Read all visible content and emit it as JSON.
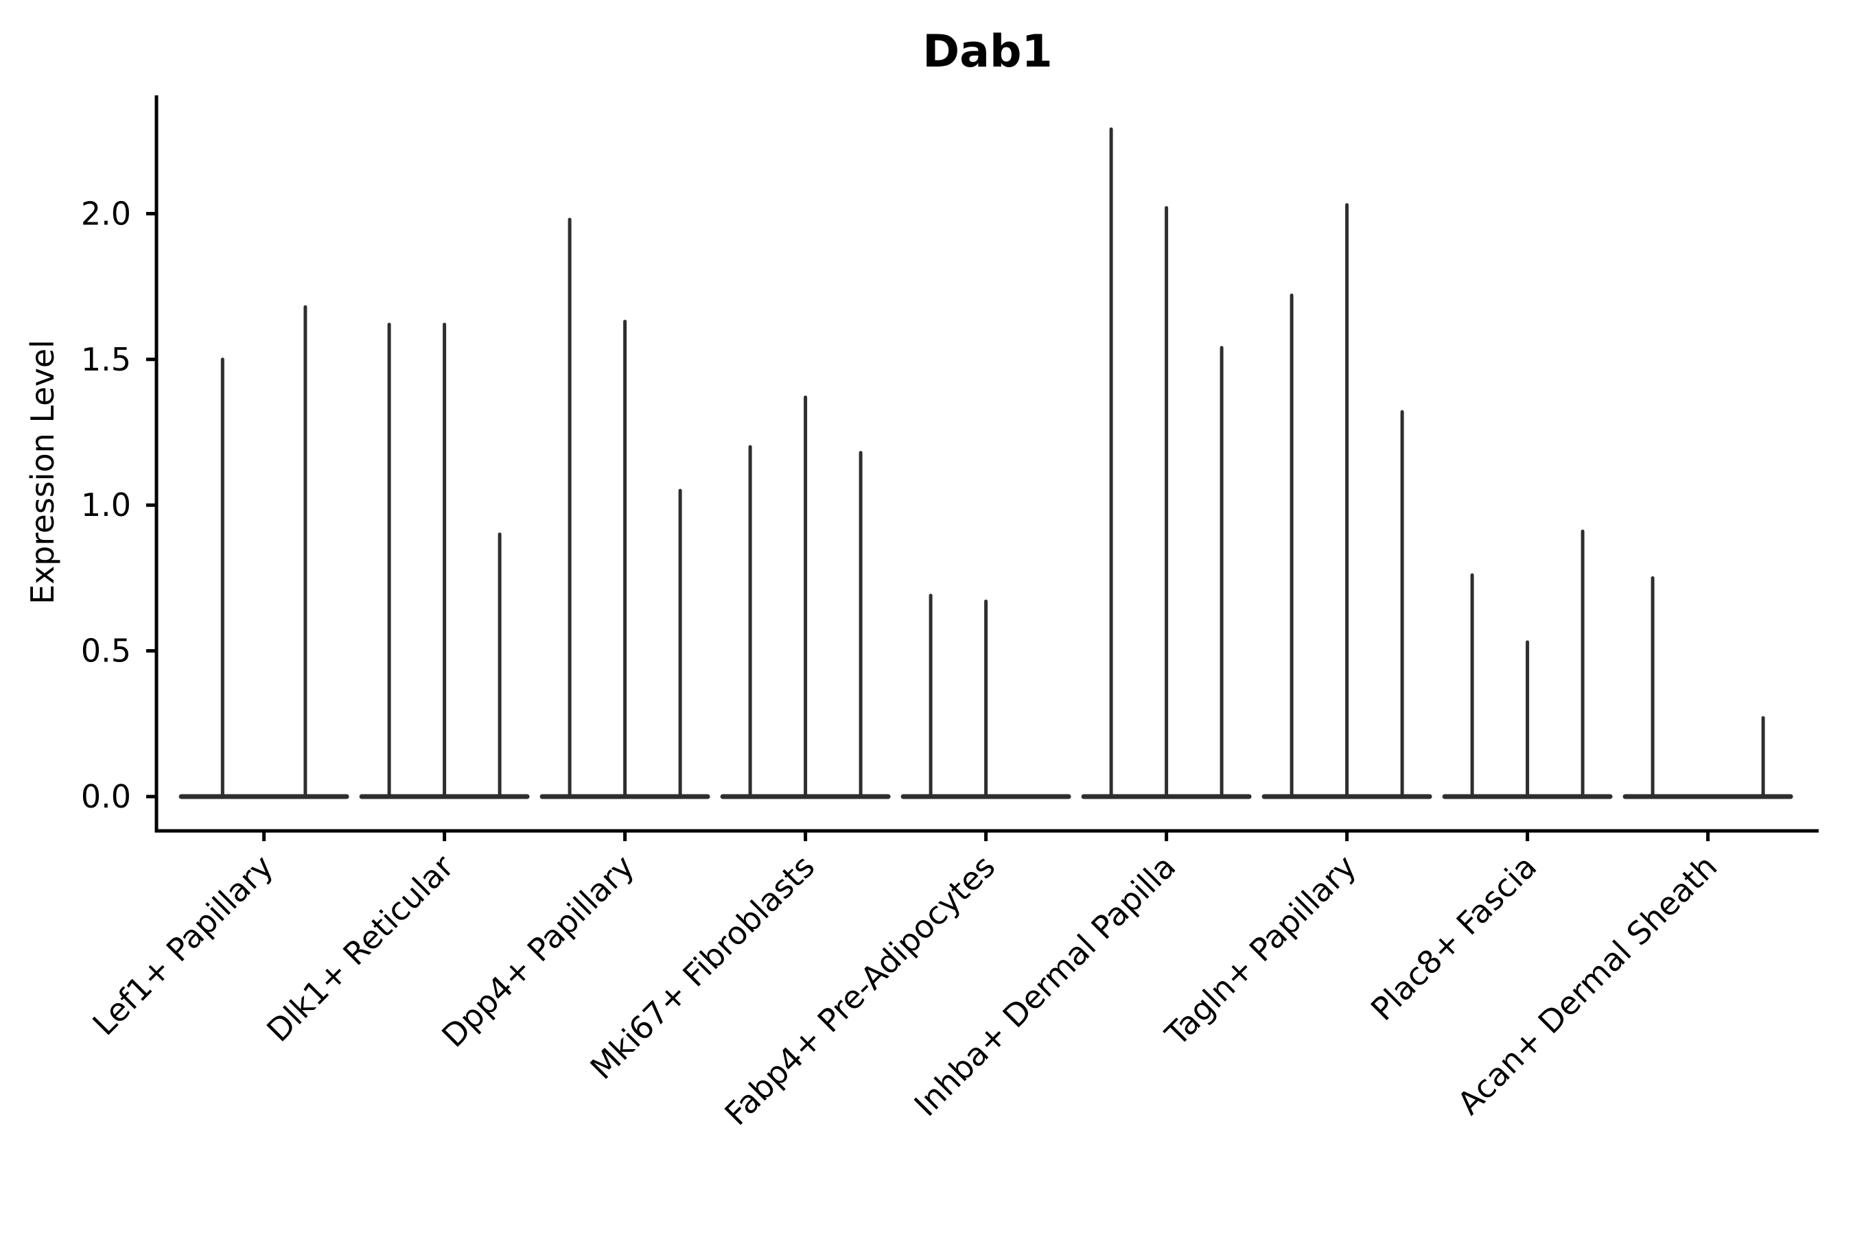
{
  "chart_data": {
    "type": "violin",
    "title": "Dab1",
    "ylabel": "Expression Level",
    "xlabel": "",
    "grid": false,
    "legend_position": "none",
    "x_tick_rotation": 45,
    "yticks": [
      {
        "value": 0.0,
        "label": "0.0"
      },
      {
        "value": 0.5,
        "label": "0.5"
      },
      {
        "value": 1.0,
        "label": "1.0"
      },
      {
        "value": 1.5,
        "label": "1.5"
      },
      {
        "value": 2.0,
        "label": "2.0"
      }
    ],
    "ylim": [
      -0.115,
      2.405
    ],
    "categories": [
      "Lef1+ Papillary",
      "Dlk1+ Reticular",
      "Dpp4+ Papillary",
      "Mki67+ Fibroblasts",
      "Fabp4+ Pre-Adipocytes",
      "Inhba+ Dermal Papilla",
      "Tagln+ Papillary",
      "Plac8+ Fascia",
      "Acan+ Dermal Sheath"
    ],
    "groups": [
      {
        "category": "Lef1+ Papillary",
        "violin_maxima": [
          1.5,
          1.68
        ]
      },
      {
        "category": "Dlk1+ Reticular",
        "violin_maxima": [
          1.62,
          1.62,
          0.9
        ]
      },
      {
        "category": "Dpp4+ Papillary",
        "violin_maxima": [
          1.98,
          1.63,
          1.05
        ]
      },
      {
        "category": "Mki67+ Fibroblasts",
        "violin_maxima": [
          1.2,
          1.37,
          1.18
        ]
      },
      {
        "category": "Fabp4+ Pre-Adipocytes",
        "violin_maxima": [
          0.69,
          0.67,
          0
        ]
      },
      {
        "category": "Inhba+ Dermal Papilla",
        "violin_maxima": [
          2.29,
          2.02,
          1.54
        ]
      },
      {
        "category": "Tagln+ Papillary",
        "violin_maxima": [
          1.72,
          2.03,
          1.32
        ]
      },
      {
        "category": "Plac8+ Fascia",
        "violin_maxima": [
          0.76,
          0.53,
          0.91
        ]
      },
      {
        "category": "Acan+ Dermal Sheath",
        "violin_maxima": [
          0.75,
          0,
          0.27
        ]
      }
    ],
    "violin_min": 0,
    "colors": {
      "violin_stroke": "#2e2e2e",
      "axis": "#000000",
      "background": "#ffffff"
    }
  }
}
